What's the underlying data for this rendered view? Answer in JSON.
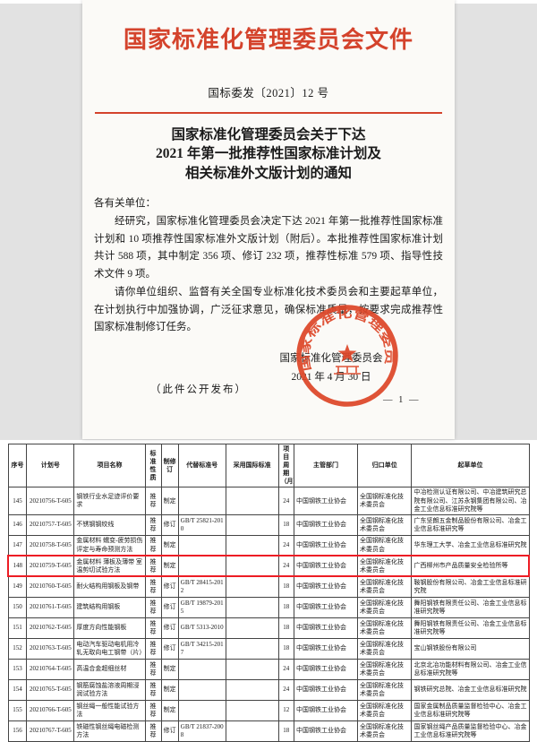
{
  "document": {
    "header_title": "国家标准化管理委员会文件",
    "doc_number": "国标委发〔2021〕12 号",
    "title_lines": [
      "国家标准化管理委员会关于下达",
      "2021 年第一批推荐性国家标准计划及",
      "相关标准外文版计划的通知"
    ],
    "salutation": "各有关单位：",
    "paragraphs": [
      "经研究，国家标准化管理委员会决定下达 2021 年第一批推荐性国家标准计划和 10 项推荐性国家标准外文版计划（附后）。本批推荐性国家标准计划共计 588 项，其中制定 356 项、修订 232 项，推荐性标准 579 项、指导性技术文件 9 项。",
      "请你单位组织、监督有关全国专业标准化技术委员会和主要起草单位，在计划执行中加强协调，广泛征求意见，确保标准质量，按要求完成推荐性国家标准制修订任务。"
    ],
    "signer": "国家标准化管理委员会",
    "date": "2021 年 4 月 30 日",
    "public_note": "（此件公开发布）",
    "page_number": "— 1 —",
    "seal_text": "国家标准化管理委员会"
  },
  "table": {
    "headers": [
      "序号",
      "计划号",
      "项目名称",
      "标准性质",
      "制修订",
      "代替标准号",
      "采用国际标准",
      "项目周期（月）",
      "主管部门",
      "归口单位",
      "起草单位"
    ],
    "highlighted_seq": "148",
    "rows": [
      [
        "145",
        "20210756-T-605",
        "钢铁行业水足迹评价要求",
        "推荐",
        "制定",
        "",
        "",
        "24",
        "中国钢铁工业协会",
        "全国钢标准化技术委员会",
        "中冶检测认证有限公司、中冶建筑研究总院有限公司、江苏永钢集团有限公司、冶金工业信息标准研究院等"
      ],
      [
        "146",
        "20210757-T-605",
        "不锈钢钢绞线",
        "推荐",
        "修订",
        "GB/T 25821-2010",
        "",
        "18",
        "中国钢铁工业协会",
        "全国钢标准化技术委员会",
        "广东坚朗五金制品股份有限公司、冶金工业信息标准研究等"
      ],
      [
        "147",
        "20210758-T-605",
        "金属材料 蠕变-疲劳损伤评定与寿命预测方法",
        "推荐",
        "制定",
        "",
        "",
        "24",
        "中国钢铁工业协会",
        "全国钢标准化技术委员会",
        "华东理工大学、冶金工业信息标准研究院"
      ],
      [
        "148",
        "20210759-T-605",
        "金属材料 薄板及薄带 室温剪切试验方法",
        "推荐",
        "制定",
        "",
        "",
        "24",
        "中国钢铁工业协会",
        "全国钢标准化技术委员会",
        "广西柳州市产品质量安全检验所等"
      ],
      [
        "149",
        "20210760-T-605",
        "耐火结构用钢板及钢带",
        "推荐",
        "修订",
        "GB/T 28415-2012",
        "",
        "18",
        "中国钢铁工业协会",
        "全国钢标准化技术委员会",
        "鞍钢股份有限公司、冶金工业信息标准研究院"
      ],
      [
        "150",
        "20210761-T-605",
        "建筑结构用钢板",
        "推荐",
        "修订",
        "GB/T 19879-2015",
        "",
        "18",
        "中国钢铁工业协会",
        "全国钢标准化技术委员会",
        "舞阳钢铁有限责任公司、冶金工业信息标准研究院等"
      ],
      [
        "151",
        "20210762-T-605",
        "厚度方向性能钢板",
        "推荐",
        "修订",
        "GB/T 5313-2010",
        "",
        "18",
        "中国钢铁工业协会",
        "全国钢标准化技术委员会",
        "舞阳钢铁有限责任公司、冶金工业信息标准研究院等"
      ],
      [
        "152",
        "20210763-T-605",
        "电动汽车驱动电机用冷轧无取向电工钢带（片）",
        "推荐",
        "修订",
        "GB/T 34215-2017",
        "",
        "18",
        "中国钢铁工业协会",
        "全国钢标准化技术委员会",
        "宝山钢铁股份有限公司"
      ],
      [
        "153",
        "20210764-T-605",
        "高温合金超细丝材",
        "推荐",
        "制定",
        "",
        "",
        "24",
        "中国钢铁工业协会",
        "全国钢标准化技术委员会",
        "北京北冶功能材料有限公司、冶金工业信息标准研究院等"
      ],
      [
        "154",
        "20210765-T-605",
        "钢筋腐蚀盐溶液周期浸润试验方法",
        "推荐",
        "制定",
        "",
        "",
        "24",
        "中国钢铁工业协会",
        "全国钢标准化技术委员会",
        "钢铁研究总院、冶金工业信息标准研究院"
      ],
      [
        "155",
        "20210766-T-605",
        "钢丝绳一般性能试验方法",
        "推荐",
        "制定",
        "",
        "",
        "12",
        "中国钢铁工业协会",
        "全国钢标准化技术委员会",
        "国家金属制品质量监督检验中心、冶金工业信息标准研究院等"
      ],
      [
        "156",
        "20210767-T-605",
        "铁磁性钢丝绳电磁检测方法",
        "推荐",
        "修订",
        "GB/T 21837-2008",
        "",
        "18",
        "中国钢铁工业协会",
        "全国钢标准化技术委员会",
        "国家钢丝绳产品质量监督检验中心、冶金工业信息标准研究院等"
      ]
    ]
  },
  "colors": {
    "accent_red": "#d4432c",
    "seal_red": "#dd4527",
    "highlight_red": "#ed1c24",
    "margin_gray": "#e2e2e2",
    "page_bg": "#fbfaf7"
  }
}
